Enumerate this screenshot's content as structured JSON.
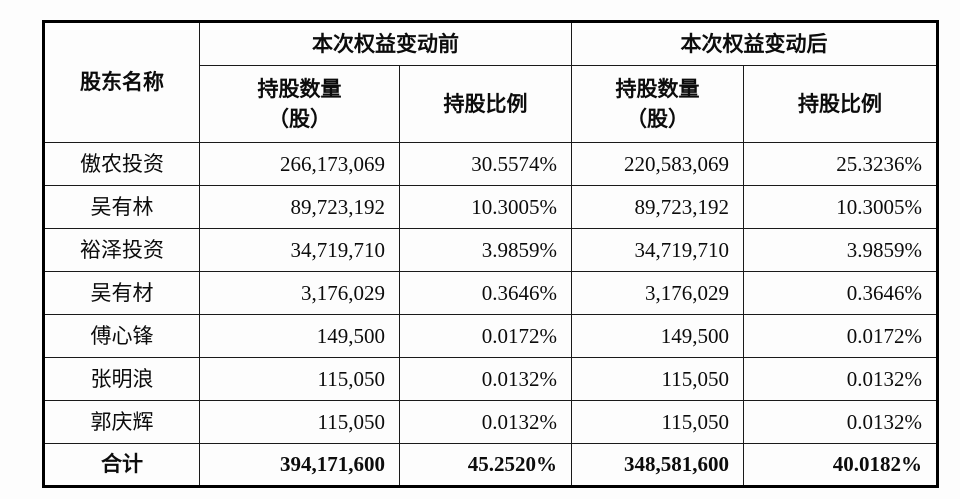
{
  "page": {
    "background": "#fdfdfd",
    "border_color": "#000000",
    "text_color": "#0c0c0c"
  },
  "table": {
    "header": {
      "shareholder": "股东名称",
      "before_group": "本次权益变动前",
      "after_group": "本次权益变动后",
      "quantity": "持股数量\n（股）",
      "ratio": "持股比例"
    },
    "rows": [
      {
        "name": "傲农投资",
        "before_qty": "266,173,069",
        "before_pct": "30.5574%",
        "after_qty": "220,583,069",
        "after_pct": "25.3236%"
      },
      {
        "name": "吴有林",
        "before_qty": "89,723,192",
        "before_pct": "10.3005%",
        "after_qty": "89,723,192",
        "after_pct": "10.3005%"
      },
      {
        "name": "裕泽投资",
        "before_qty": "34,719,710",
        "before_pct": "3.9859%",
        "after_qty": "34,719,710",
        "after_pct": "3.9859%"
      },
      {
        "name": "吴有材",
        "before_qty": "3,176,029",
        "before_pct": "0.3646%",
        "after_qty": "3,176,029",
        "after_pct": "0.3646%"
      },
      {
        "name": "傅心锋",
        "before_qty": "149,500",
        "before_pct": "0.0172%",
        "after_qty": "149,500",
        "after_pct": "0.0172%"
      },
      {
        "name": "张明浪",
        "before_qty": "115,050",
        "before_pct": "0.0132%",
        "after_qty": "115,050",
        "after_pct": "0.0132%"
      },
      {
        "name": "郭庆辉",
        "before_qty": "115,050",
        "before_pct": "0.0132%",
        "after_qty": "115,050",
        "after_pct": "0.0132%"
      }
    ],
    "total": {
      "name": "合计",
      "before_qty": "394,171,600",
      "before_pct": "45.2520%",
      "after_qty": "348,581,600",
      "after_pct": "40.0182%"
    }
  }
}
